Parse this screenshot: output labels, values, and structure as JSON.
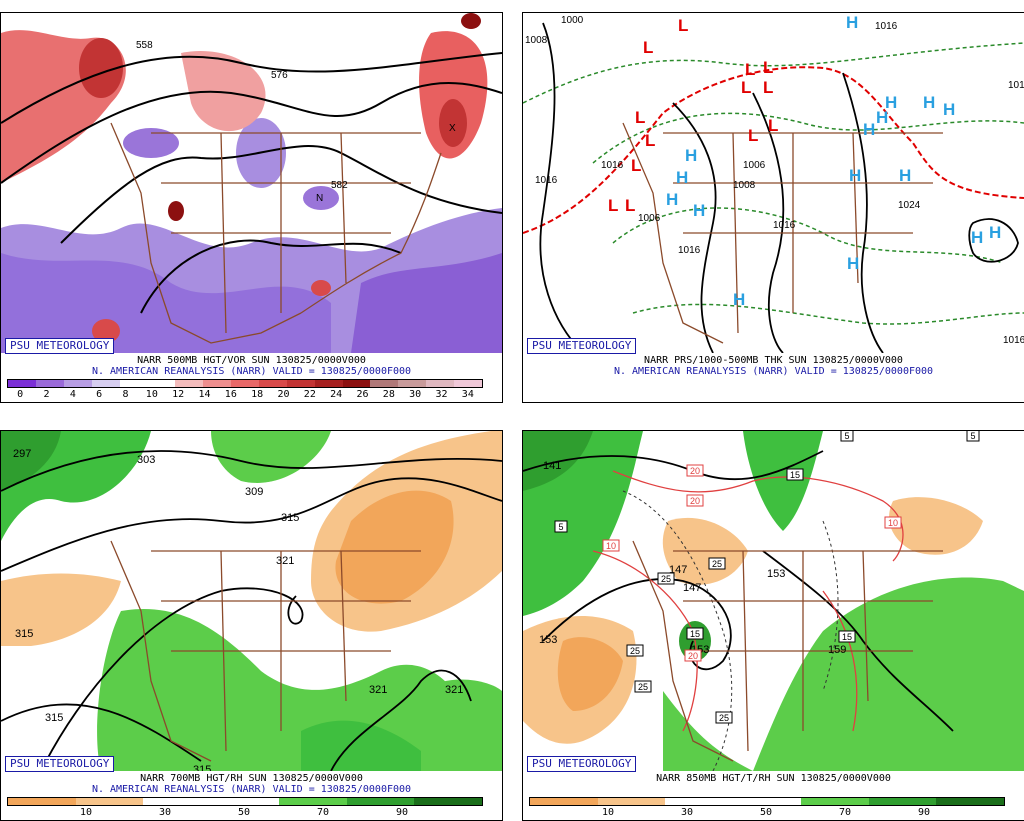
{
  "panels": [
    {
      "logo": "PSU METEOROLOGY",
      "title": "NARR 500MB HGT/VOR SUN 130825/0000V000",
      "subtitle": "N. AMERICAN REANALYSIS (NARR) VALID = 130825/0000F000",
      "colorbar": {
        "colors": [
          "#7b2fd6",
          "#9a6ad9",
          "#b79de4",
          "#d6cdf0",
          "#ffffff",
          "#ffffff",
          "#f4bcbc",
          "#ee8e8e",
          "#e86868",
          "#d84a4a",
          "#c23434",
          "#a62020",
          "#8c1010",
          "#b07878",
          "#c89a9a",
          "#e0b8c0",
          "#f0c8d8"
        ],
        "labels": [
          "0",
          "2",
          "4",
          "6",
          "8",
          "10",
          "12",
          "14",
          "16",
          "18",
          "20",
          "22",
          "24",
          "26",
          "28",
          "30",
          "32",
          "34"
        ]
      },
      "map_labels": [
        "558",
        "576",
        "582",
        "N",
        "X"
      ]
    },
    {
      "logo": "PSU METEOROLOGY",
      "title": "NARR PRS/1000-500MB THK SUN 130825/0000V000",
      "subtitle": "N. AMERICAN REANALYSIS (NARR) VALID = 130825/0000F000",
      "map_labels": [
        "1000",
        "1008",
        "1016",
        "1016",
        "1006",
        "1008",
        "1016",
        "1016",
        "1024",
        "1016",
        "1016",
        "1016",
        "1006"
      ],
      "lows": [
        "L",
        "L",
        "L",
        "L",
        "L",
        "L",
        "L",
        "L",
        "L",
        "L",
        "L",
        "L",
        "L"
      ],
      "highs": [
        "H",
        "H",
        "H",
        "H",
        "H",
        "H",
        "H",
        "H",
        "H",
        "H",
        "H",
        "H",
        "H",
        "H",
        "H",
        "H"
      ]
    },
    {
      "logo": "PSU METEOROLOGY",
      "title": "NARR 700MB HGT/RH SUN 130825/0000V000",
      "subtitle": "N. AMERICAN REANALYSIS (NARR) VALID = 130825/0000F000",
      "colorbar": {
        "colors": [
          "#f2a65a",
          "#f7c48a",
          "#ffffff",
          "#ffffff",
          "#5ccd4a",
          "#2f9e2f",
          "#1a6e1a"
        ],
        "labels": [
          "10",
          "30",
          "50",
          "70",
          "90"
        ]
      },
      "map_labels": [
        "297",
        "303",
        "309",
        "315",
        "321",
        "315",
        "315",
        "321",
        "321",
        "315"
      ]
    },
    {
      "logo": "PSU METEOROLOGY",
      "title": "NARR 850MB HGT/T/RH SUN 130825/0000V000",
      "colorbar": {
        "colors": [
          "#f2a65a",
          "#f7c48a",
          "#ffffff",
          "#ffffff",
          "#5ccd4a",
          "#2f9e2f",
          "#1a6e1a"
        ],
        "labels": [
          "10",
          "30",
          "50",
          "70",
          "90"
        ]
      },
      "map_labels": [
        "141",
        "147",
        "153",
        "159",
        "153",
        "147",
        "153"
      ],
      "boxed_labels": [
        "5",
        "5",
        "5",
        "15",
        "15",
        "15",
        "25",
        "25",
        "25",
        "25",
        "25",
        "20",
        "20",
        "20",
        "10",
        "10"
      ]
    }
  ]
}
